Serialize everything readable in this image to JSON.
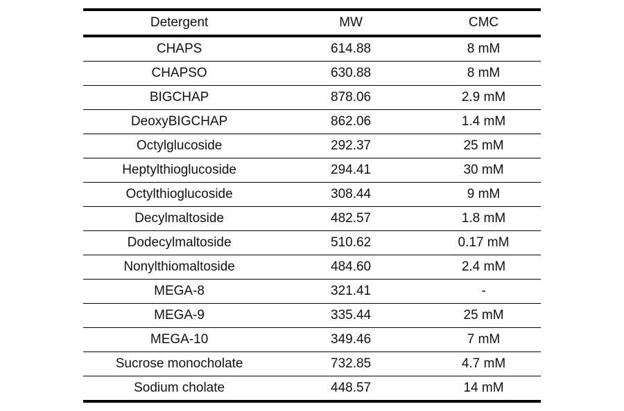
{
  "table": {
    "headers": [
      "Detergent",
      "MW",
      "CMC"
    ],
    "rows": [
      {
        "detergent": "CHAPS",
        "mw": "614.88",
        "cmc": "8 mM"
      },
      {
        "detergent": "CHAPSO",
        "mw": "630.88",
        "cmc": "8 mM"
      },
      {
        "detergent": "BIGCHAP",
        "mw": "878.06",
        "cmc": "2.9 mM"
      },
      {
        "detergent": "DeoxyBIGCHAP",
        "mw": "862.06",
        "cmc": "1.4 mM"
      },
      {
        "detergent": "Octylglucoside",
        "mw": "292.37",
        "cmc": "25 mM"
      },
      {
        "detergent": "Heptylthioglucoside",
        "mw": "294.41",
        "cmc": "30 mM"
      },
      {
        "detergent": "Octylthioglucoside",
        "mw": "308.44",
        "cmc": "9 mM"
      },
      {
        "detergent": "Decylmaltoside",
        "mw": "482.57",
        "cmc": "1.8 mM"
      },
      {
        "detergent": "Dodecylmaltoside",
        "mw": "510.62",
        "cmc": "0.17 mM"
      },
      {
        "detergent": "Nonylthiomaltoside",
        "mw": "484.60",
        "cmc": "2.4 mM"
      },
      {
        "detergent": "MEGA-8",
        "mw": "321.41",
        "cmc": "-"
      },
      {
        "detergent": "MEGA-9",
        "mw": "335.44",
        "cmc": "25 mM"
      },
      {
        "detergent": "MEGA-10",
        "mw": "349.46",
        "cmc": "7 mM"
      },
      {
        "detergent": "Sucrose monocholate",
        "mw": "732.85",
        "cmc": "4.7 mM"
      },
      {
        "detergent": "Sodium cholate",
        "mw": "448.57",
        "cmc": "14 mM"
      }
    ],
    "text_color": "#111111",
    "rule_color": "#000000"
  }
}
